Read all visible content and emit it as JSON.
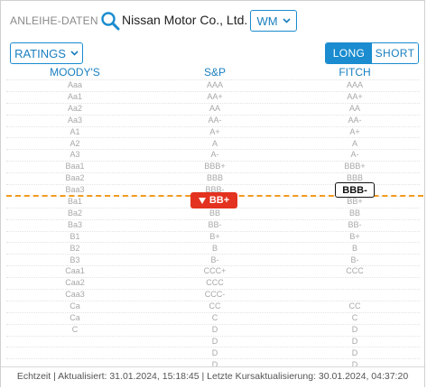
{
  "header": {
    "label": "ANLEIHE-DATEN",
    "company": "Nissan Motor Co., Ltd.",
    "exchange": "WM"
  },
  "controls": {
    "ratings_label": "RATINGS",
    "long_label": "LONG",
    "short_label": "SHORT",
    "active_term": "LONG"
  },
  "columns": [
    "MOODY'S",
    "S&P",
    "FITCH"
  ],
  "scales": {
    "moodys": [
      "Aaa",
      "Aa1",
      "Aa2",
      "Aa3",
      "A1",
      "A2",
      "A3",
      "Baa1",
      "Baa2",
      "Baa3",
      "Ba1",
      "Ba2",
      "Ba3",
      "B1",
      "B2",
      "B3",
      "Caa1",
      "Caa2",
      "Caa3",
      "Ca",
      "Ca",
      "C",
      "",
      "",
      ""
    ],
    "sp": [
      "AAA",
      "AA+",
      "AA",
      "AA-",
      "A+",
      "A",
      "A-",
      "BBB+",
      "BBB",
      "BBB-",
      "BB+",
      "BB",
      "BB-",
      "B+",
      "B",
      "B-",
      "CCC+",
      "CCC",
      "CCC-",
      "CC",
      "C",
      "D",
      "D",
      "D",
      "D"
    ],
    "fitch": [
      "AAA",
      "AA+",
      "AA",
      "AA-",
      "A+",
      "A",
      "A-",
      "BBB+",
      "BBB",
      "BBB-",
      "BB+",
      "BB",
      "BB-",
      "B+",
      "B",
      "B-",
      "CCC",
      "",
      "",
      "CC",
      "C",
      "D",
      "D",
      "D",
      "D"
    ]
  },
  "current": {
    "sp": "BB+",
    "fitch": "BBB-"
  },
  "colors": {
    "accent": "#1a8ccf",
    "threshold": "#f39a1e",
    "downgrade": "#e3321f"
  },
  "footer": "Echtzeit | Aktualisiert: 31.01.2024, 15:18:45 | Letzte Kursaktualisierung: 30.01.2024, 04:37:20"
}
